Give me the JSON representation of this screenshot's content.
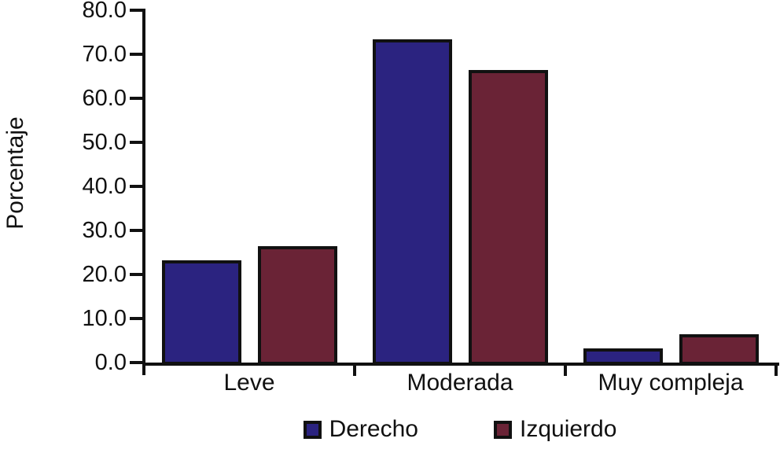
{
  "figure": {
    "ylabel": "Porcentaje"
  },
  "chart_data": {
    "type": "bar",
    "title": "",
    "xlabel": "",
    "ylabel": "Porcentaje",
    "categories": [
      "Leve",
      "Moderada",
      "Muy compleja"
    ],
    "series": [
      {
        "name": "Derecho",
        "color": "#2b2380",
        "values": [
          23.3,
          73.4,
          3.3
        ]
      },
      {
        "name": "Izquierdo",
        "color": "#6a2336",
        "values": [
          26.5,
          66.5,
          6.4
        ]
      }
    ],
    "ylim": [
      0,
      80
    ],
    "ytick_step": 10,
    "ytick_labels": [
      "0.0",
      "10.0",
      "20.0",
      "30.0",
      "40.0",
      "50.0",
      "60.0",
      "70.0",
      "80.0"
    ],
    "legend_position": "bottom",
    "grid": false,
    "bar_border_color": "#111111",
    "axis_color": "#111111"
  }
}
